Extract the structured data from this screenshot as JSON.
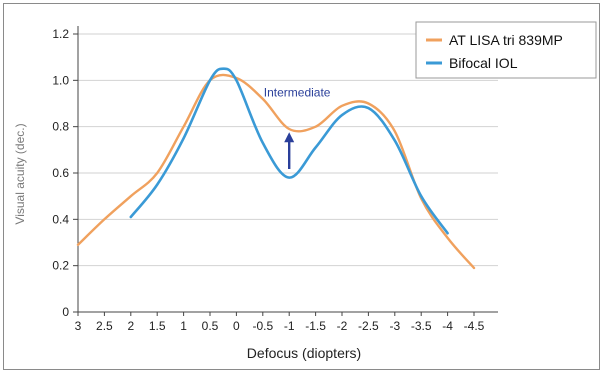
{
  "chart_data": {
    "type": "line",
    "title": "",
    "xlabel": "Defocus (diopters)",
    "ylabel": "Visual acuity (dec.)",
    "xlim": [
      3,
      -4.5
    ],
    "ylim": [
      0,
      1.2
    ],
    "x_ticks": [
      "3",
      "2.5",
      "2",
      "1.5",
      "1",
      "0.5",
      "0",
      "-0.5",
      "-1",
      "-1.5",
      "-2",
      "-2.5",
      "-3",
      "-3.5",
      "-4",
      "-4.5"
    ],
    "y_ticks": [
      "0",
      "0.2",
      "0.4",
      "0.6",
      "0.8",
      "1.0",
      "1.2"
    ],
    "grid": "horizontal",
    "legend_position": "top-right",
    "series": [
      {
        "name": "AT LISA tri 839MP",
        "color": "#f0a15e",
        "x": [
          3,
          2.5,
          2,
          1.5,
          1,
          0.5,
          0,
          -0.5,
          -1,
          -1.5,
          -2,
          -2.5,
          -3,
          -3.5,
          -4,
          -4.5
        ],
        "values": [
          0.29,
          0.4,
          0.5,
          0.6,
          0.8,
          1.0,
          1.01,
          0.92,
          0.79,
          0.8,
          0.89,
          0.9,
          0.78,
          0.49,
          0.32,
          0.19
        ]
      },
      {
        "name": "Bifocal IOL",
        "color": "#3a9ad6",
        "x": [
          2,
          1.5,
          1,
          0.5,
          0.25,
          0,
          -0.5,
          -1,
          -1.5,
          -2,
          -2.5,
          -3,
          -3.5,
          -4
        ],
        "values": [
          0.41,
          0.55,
          0.75,
          1.0,
          1.05,
          1.0,
          0.73,
          0.58,
          0.71,
          0.85,
          0.88,
          0.74,
          0.5,
          0.34
        ]
      }
    ],
    "annotation": {
      "text": "Intermediate",
      "color": "#2a3f9a",
      "arrow_x": -1,
      "arrow_from": 0.6,
      "arrow_to": 0.78
    }
  }
}
